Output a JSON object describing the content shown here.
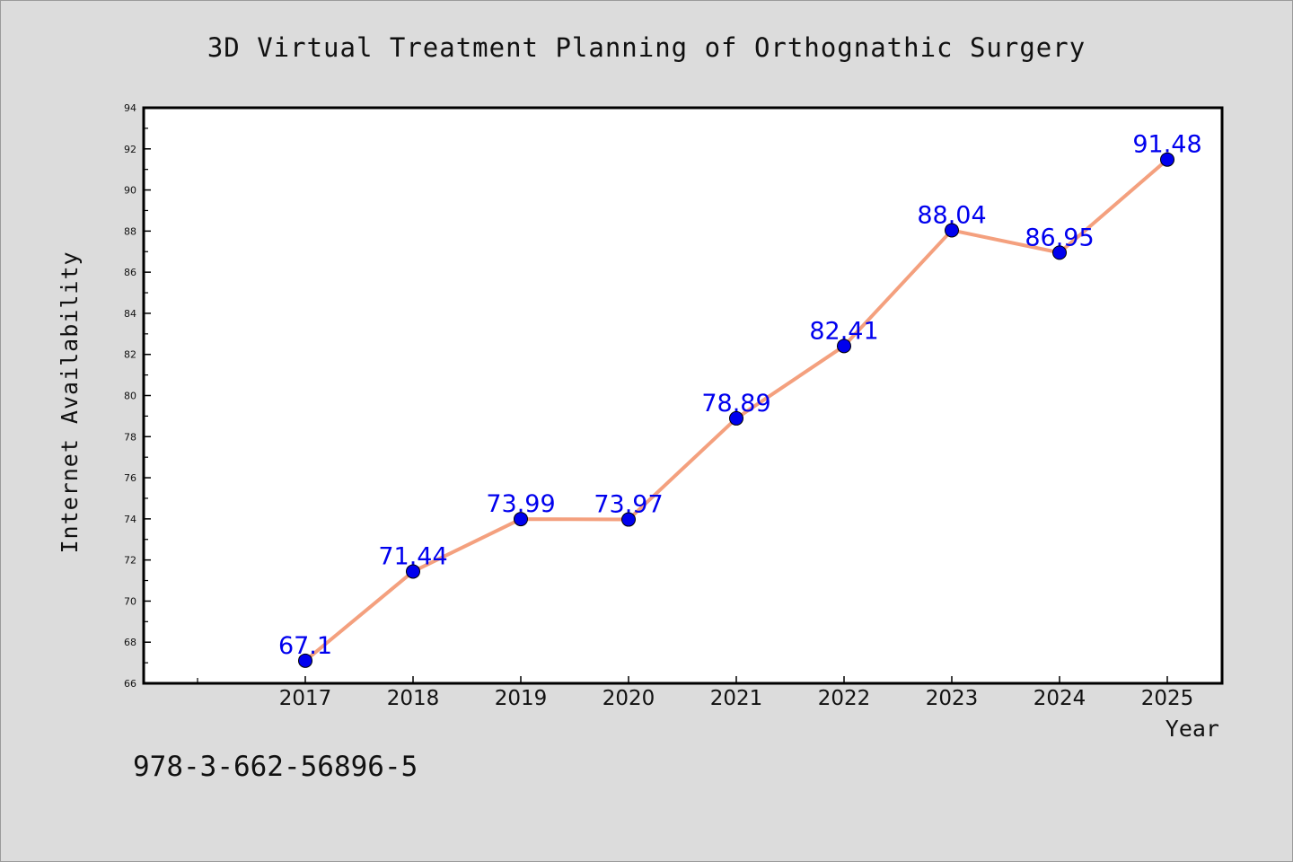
{
  "chart_data": {
    "type": "line",
    "title": "3D Virtual Treatment Planning of Orthognathic Surgery",
    "xlabel": "Year",
    "ylabel": "Internet Availability",
    "categories": [
      "2017",
      "2018",
      "2019",
      "2020",
      "2021",
      "2022",
      "2023",
      "2024",
      "2025"
    ],
    "series": [
      {
        "values": [
          67.1,
          71.44,
          73.99,
          73.97,
          78.89,
          82.41,
          88.04,
          86.95,
          91.48
        ],
        "labels": [
          "67.1",
          "71.44",
          "73.99",
          "73.97",
          "78.89",
          "82.41",
          "88.04",
          "86.95",
          "91.48"
        ]
      }
    ],
    "yticks": [
      "66",
      "68",
      "70",
      "72",
      "74",
      "76",
      "78",
      "80",
      "82",
      "84",
      "86",
      "88",
      "90",
      "92",
      "94"
    ],
    "ylim": [
      66,
      94
    ],
    "grid": false,
    "legend": "none",
    "colors": {
      "line": "#f4a07e",
      "marker": "#0000ee",
      "label": "#0000ee",
      "background": "#dcdcdc",
      "plot_background": "#ffffff"
    }
  },
  "footer": {
    "isbn": "978-3-662-56896-5"
  }
}
